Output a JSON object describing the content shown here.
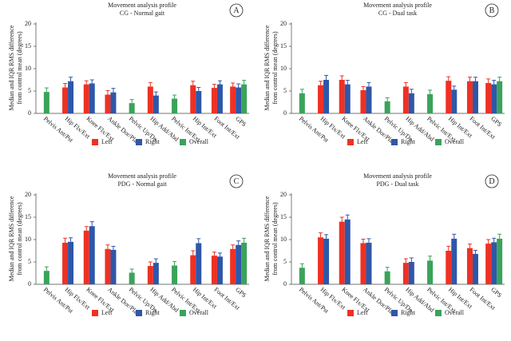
{
  "chart_data": [
    {
      "type": "bar",
      "title": "Movement analysis profile",
      "subtitle": "CG - Normal gait",
      "label": "A",
      "ylabel": "Median and IQR RMS difference from control mean (degrees)",
      "categories": [
        "Pelvis Ant/Pst",
        "Hip Flx/Ext",
        "Knee Flx/Ext",
        "Ankle Dor/Pla",
        "Pelvic Up/Dn",
        "Hip Add/Abd",
        "Pelvic Int/Ext",
        "Hip Int/Ext",
        "Foot Int/Ext",
        "GPS"
      ],
      "ylim": [
        0,
        20
      ],
      "yticks": [
        0,
        5,
        10,
        15,
        20
      ],
      "series": [
        {
          "name": "Left",
          "color": "#ee3124",
          "values": [
            null,
            5.8,
            6.5,
            4.2,
            null,
            6.0,
            null,
            6.3,
            5.7,
            6.0
          ],
          "errors": [
            null,
            0.9,
            0.8,
            0.9,
            null,
            0.9,
            null,
            0.9,
            0.8,
            0.8
          ]
        },
        {
          "name": "Right",
          "color": "#2f57a8",
          "values": [
            null,
            7.2,
            6.7,
            4.7,
            null,
            4.0,
            null,
            5.0,
            6.5,
            5.8
          ],
          "errors": [
            null,
            0.9,
            0.8,
            0.9,
            null,
            0.8,
            null,
            0.8,
            0.8,
            0.8
          ]
        },
        {
          "name": "Overall",
          "color": "#3aa35a",
          "values": [
            4.8,
            null,
            null,
            null,
            2.3,
            null,
            3.3,
            null,
            null,
            6.5
          ],
          "errors": [
            0.9,
            null,
            null,
            null,
            0.8,
            null,
            0.8,
            null,
            null,
            0.9
          ]
        }
      ]
    },
    {
      "type": "bar",
      "title": "Movement analysis profile",
      "subtitle": "CG - Dual task",
      "label": "B",
      "ylabel": "Median and IQR RMS difference from control mean (degrees)",
      "categories": [
        "Pelvis Ant/Pst",
        "Hip Flx/Ext",
        "Knee Flx/Ext",
        "Ankle Dor/Pla",
        "Pelvic Up/Dn",
        "Hip Add/Abd",
        "Pelvic Int/Ext",
        "Hip Int/Ext",
        "Foot Int/Ext",
        "GPS"
      ],
      "ylim": [
        0,
        20
      ],
      "yticks": [
        0,
        5,
        10,
        15,
        20
      ],
      "series": [
        {
          "name": "Left",
          "color": "#ee3124",
          "values": [
            null,
            6.3,
            7.5,
            5.2,
            null,
            6.0,
            null,
            7.3,
            7.2,
            6.8
          ],
          "errors": [
            null,
            0.9,
            0.9,
            0.8,
            null,
            0.9,
            null,
            0.9,
            0.9,
            0.9
          ]
        },
        {
          "name": "Right",
          "color": "#2f57a8",
          "values": [
            null,
            7.5,
            6.5,
            6.0,
            null,
            4.5,
            null,
            5.3,
            7.2,
            6.5
          ],
          "errors": [
            null,
            1.0,
            0.9,
            0.9,
            null,
            0.9,
            null,
            0.8,
            0.9,
            0.9
          ]
        },
        {
          "name": "Overall",
          "color": "#3aa35a",
          "values": [
            4.5,
            null,
            null,
            null,
            2.7,
            null,
            4.3,
            null,
            null,
            7.2
          ],
          "errors": [
            0.9,
            null,
            null,
            null,
            0.8,
            null,
            0.9,
            null,
            null,
            0.9
          ]
        }
      ]
    },
    {
      "type": "bar",
      "title": "Movement analysis profile",
      "subtitle": "PDG - Normal gait",
      "label": "C",
      "ylabel": "Median and IQR RMS difference from control mean (degrees)",
      "categories": [
        "Pelvis Ant/Pst",
        "Hip Flx/Ext",
        "Knee Flx/Ext",
        "Ankle Dor/Pla",
        "Pelvic Up/Dn",
        "Hip Add/Abd",
        "Pelvic Int/Ext",
        "Hip Int/Ext",
        "Foot Int/Ext",
        "GPS"
      ],
      "ylim": [
        0,
        20
      ],
      "yticks": [
        0,
        5,
        10,
        15,
        20
      ],
      "series": [
        {
          "name": "Left",
          "color": "#ee3124",
          "values": [
            null,
            9.3,
            12.0,
            7.9,
            null,
            4.1,
            null,
            6.5,
            6.4,
            7.9
          ],
          "errors": [
            null,
            1.0,
            0.9,
            0.9,
            null,
            0.9,
            null,
            1.0,
            0.8,
            0.9
          ]
        },
        {
          "name": "Right",
          "color": "#2f57a8",
          "values": [
            null,
            9.5,
            13.0,
            7.7,
            null,
            4.8,
            null,
            9.2,
            6.2,
            8.8
          ],
          "errors": [
            null,
            0.9,
            1.0,
            0.8,
            null,
            0.9,
            null,
            1.0,
            0.8,
            0.9
          ]
        },
        {
          "name": "Overall",
          "color": "#3aa35a",
          "values": [
            3.0,
            null,
            null,
            null,
            2.6,
            null,
            4.2,
            null,
            null,
            9.3
          ],
          "errors": [
            0.9,
            null,
            null,
            null,
            0.8,
            null,
            0.9,
            null,
            null,
            1.0
          ]
        }
      ]
    },
    {
      "type": "bar",
      "title": "Movement analysis profile",
      "subtitle": "PDG - Dual task",
      "label": "D",
      "ylabel": "Median and IQR RMS difference from control mean (degrees)",
      "categories": [
        "Pelvis Ant/Pst",
        "Hip Flx/Ext",
        "Knee Flx/Ext",
        "Ankle Dor/Pla",
        "Pelvic Up/Dn",
        "Hip Add/Abd",
        "Pelvic Int/Ext",
        "Hip Int/Ext",
        "Foot Int/Ext",
        "GPS"
      ],
      "ylim": [
        0,
        20
      ],
      "yticks": [
        0,
        5,
        10,
        15,
        20
      ],
      "series": [
        {
          "name": "Left",
          "color": "#ee3124",
          "values": [
            null,
            10.5,
            14.0,
            9.2,
            null,
            4.8,
            null,
            7.5,
            8.1,
            9.1
          ],
          "errors": [
            null,
            1.0,
            1.0,
            0.9,
            null,
            0.9,
            null,
            1.0,
            0.9,
            0.9
          ]
        },
        {
          "name": "Right",
          "color": "#2f57a8",
          "values": [
            null,
            10.2,
            14.5,
            9.3,
            null,
            5.0,
            null,
            10.2,
            6.8,
            9.4
          ],
          "errors": [
            null,
            0.9,
            1.0,
            0.9,
            null,
            0.9,
            null,
            1.0,
            0.8,
            0.9
          ]
        },
        {
          "name": "Overall",
          "color": "#3aa35a",
          "values": [
            3.7,
            null,
            null,
            null,
            2.9,
            null,
            5.3,
            null,
            null,
            10.2
          ],
          "errors": [
            0.9,
            null,
            null,
            null,
            0.9,
            null,
            1.0,
            null,
            null,
            1.0
          ]
        }
      ]
    }
  ]
}
